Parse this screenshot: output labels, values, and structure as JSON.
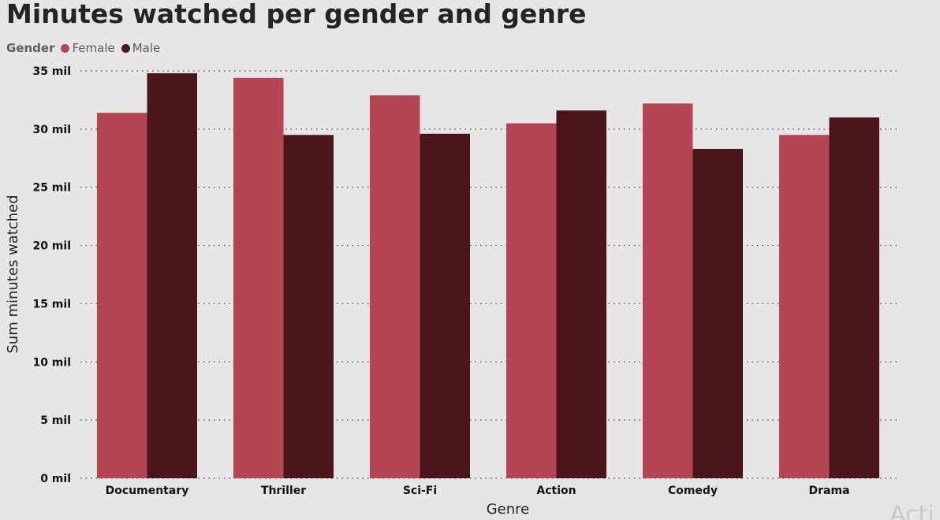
{
  "chart_data": {
    "type": "bar",
    "title": "Minutes watched per gender and genre",
    "xlabel": "Genre",
    "ylabel": "Sum minutes watched",
    "categories": [
      "Documentary",
      "Thriller",
      "Sci-Fi",
      "Action",
      "Comedy",
      "Drama"
    ],
    "series": [
      {
        "name": "Female",
        "color": "#b44653",
        "values": [
          31.4,
          34.4,
          32.9,
          30.5,
          32.2,
          29.5
        ]
      },
      {
        "name": "Male",
        "color": "#4b161b",
        "values": [
          34.8,
          29.5,
          29.6,
          31.6,
          28.3,
          31.0
        ]
      }
    ],
    "ylim": [
      0,
      35
    ],
    "yticks": [
      0,
      5,
      10,
      15,
      20,
      25,
      30,
      35
    ],
    "ytick_labels": [
      "0 mil",
      "5 mil",
      "10 mil",
      "15 mil",
      "20 mil",
      "25 mil",
      "30 mil",
      "35 mil"
    ],
    "grid": true,
    "legend": {
      "title": "Gender",
      "position": "top-left"
    }
  },
  "watermark": "Acti"
}
